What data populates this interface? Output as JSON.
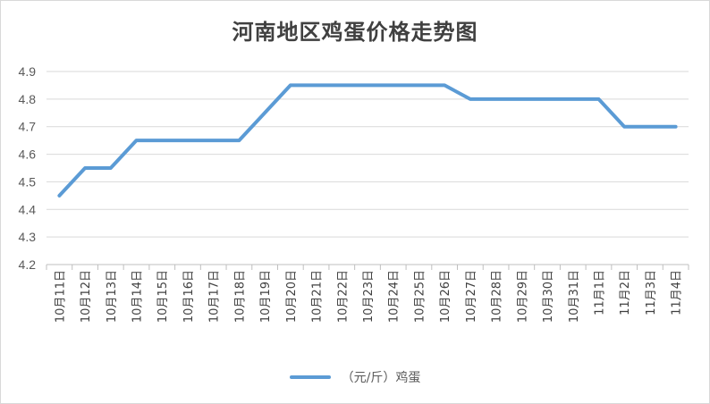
{
  "chart_data": {
    "type": "line",
    "title": "河南地区鸡蛋价格走势图",
    "categories": [
      "10月11日",
      "10月12日",
      "10月13日",
      "10月14日",
      "10月15日",
      "10月16日",
      "10月17日",
      "10月18日",
      "10月19日",
      "10月20日",
      "10月21日",
      "10月22日",
      "10月23日",
      "10月24日",
      "10月25日",
      "10月26日",
      "10月27日",
      "10月28日",
      "10月29日",
      "10月30日",
      "10月31日",
      "11月1日",
      "11月2日",
      "11月3日",
      "11月4日"
    ],
    "series": [
      {
        "name": "（元/斤）鸡蛋",
        "values": [
          4.45,
          4.55,
          4.55,
          4.65,
          4.65,
          4.65,
          4.65,
          4.65,
          4.75,
          4.85,
          4.85,
          4.85,
          4.85,
          4.85,
          4.85,
          4.85,
          4.8,
          4.8,
          4.8,
          4.8,
          4.8,
          4.8,
          4.7,
          4.7,
          4.7
        ]
      }
    ],
    "y_ticks": [
      "4.2",
      "4.3",
      "4.4",
      "4.5",
      "4.6",
      "4.7",
      "4.8",
      "4.9"
    ],
    "ylim": [
      4.2,
      4.9
    ],
    "grid": true,
    "legend": "bottom",
    "line_color": "#5b9bd5",
    "xlabel": "",
    "ylabel": ""
  }
}
